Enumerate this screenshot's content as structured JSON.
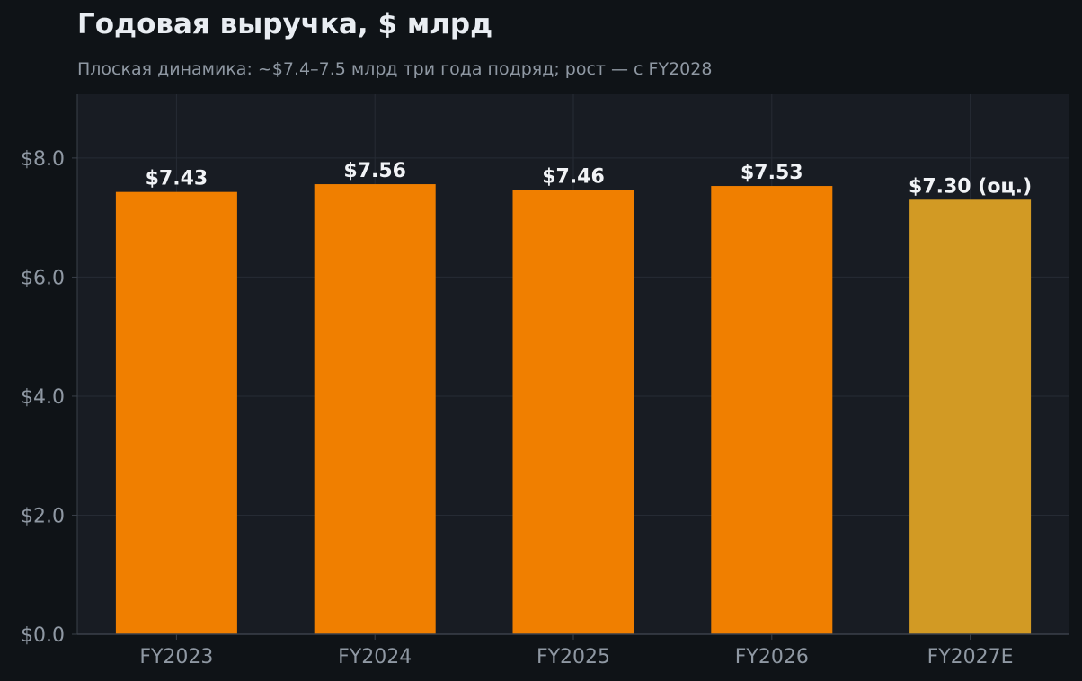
{
  "title": "Годовая выручка, $ млрд",
  "subtitle": "Плоская динамика: ~$7.4–7.5 млрд три года подряд; рост — с FY2028",
  "colors": {
    "background": "#0f1317",
    "plot_background": "#181c23",
    "grid": "#262b34",
    "axis": "#3a404a",
    "tick_text": "#8f98a3",
    "bar_actual": "#f07f00",
    "bar_estimate": "#d29a24",
    "label_text": "#f1f3f6"
  },
  "chart_data": {
    "type": "bar",
    "categories": [
      "FY2023",
      "FY2024",
      "FY2025",
      "FY2026",
      "FY2027E"
    ],
    "values": [
      7.43,
      7.56,
      7.46,
      7.53,
      7.3
    ],
    "estimate": [
      false,
      false,
      false,
      false,
      true
    ],
    "data_labels": [
      "$7.43",
      "$7.56",
      "$7.46",
      "$7.53",
      "$7.30 (оц.)"
    ],
    "title": "Годовая выручка, $ млрд",
    "xlabel": "",
    "ylabel": "",
    "ylim": [
      0,
      9.07
    ],
    "yticks": [
      0,
      2,
      4,
      6,
      8
    ],
    "ytick_labels": [
      "$0.0",
      "$2.0",
      "$4.0",
      "$6.0",
      "$8.0"
    ],
    "grid": true,
    "legend": "none"
  }
}
